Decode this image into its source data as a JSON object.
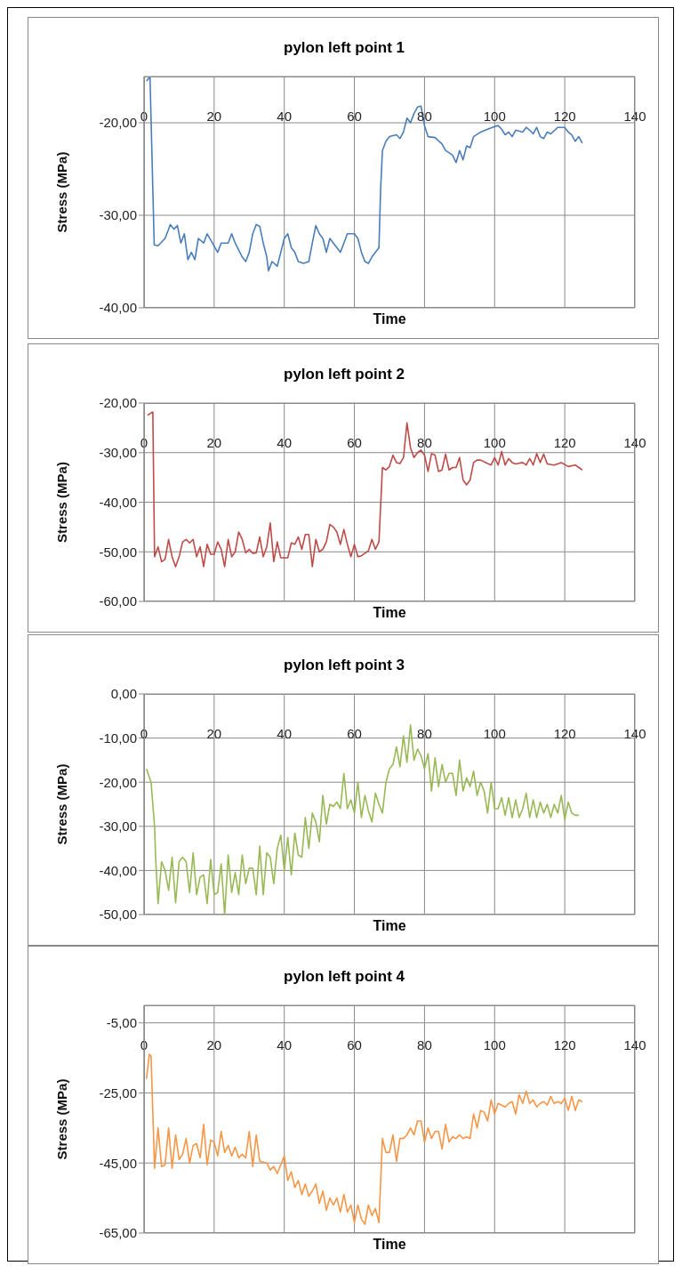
{
  "chart_data": [
    {
      "type": "line",
      "title": "pylon left point 1",
      "xlabel": "Time",
      "ylabel": "Stress (MPa)",
      "color": "#4a7ebb",
      "grid": true,
      "xlim": [
        0,
        140
      ],
      "xticks": [
        0,
        20,
        40,
        60,
        80,
        100,
        120,
        140
      ],
      "ylim": [
        -40,
        -15
      ],
      "yticks": [
        {
          "value": -40,
          "label": "-40,00"
        },
        {
          "value": -30,
          "label": "-30,00"
        },
        {
          "value": -20,
          "label": "-20,00"
        }
      ],
      "x": [
        0.7,
        1.7,
        2.9,
        4,
        6,
        7.5,
        8.5,
        9.5,
        10.5,
        11.5,
        12.5,
        13.5,
        14.5,
        15.5,
        17,
        18,
        19.5,
        21,
        22,
        24,
        25,
        26,
        28,
        29,
        30,
        31,
        32,
        33,
        34,
        35,
        35.5,
        36.5,
        38,
        39,
        40,
        41,
        42,
        43,
        44,
        45.5,
        47,
        48,
        49,
        50,
        51,
        52,
        53,
        54,
        55,
        56,
        57,
        58,
        60,
        61,
        62,
        63,
        64,
        65,
        66,
        67,
        67.5,
        68,
        69,
        70,
        72,
        73,
        74,
        75,
        76,
        77,
        78,
        79,
        80,
        81,
        83,
        85,
        86,
        88,
        89,
        90,
        91,
        92,
        93,
        94,
        96,
        98,
        100,
        101,
        102,
        103,
        104,
        105,
        106,
        108,
        109,
        110,
        111,
        112,
        113,
        114,
        115,
        116,
        118,
        120,
        121,
        122,
        123,
        124,
        125
      ],
      "values": [
        -15.5,
        -15,
        -33.2,
        -33.3,
        -32.5,
        -31,
        -31.5,
        -31.1,
        -33,
        -32,
        -34.8,
        -34,
        -34.8,
        -32.5,
        -33,
        -32,
        -33,
        -34,
        -33,
        -33,
        -32,
        -33,
        -34.5,
        -35,
        -34,
        -32,
        -31,
        -31.2,
        -33,
        -34.5,
        -36,
        -35,
        -35.5,
        -34,
        -32.5,
        -32,
        -33.5,
        -34,
        -35,
        -35.2,
        -35,
        -33,
        -31.1,
        -32,
        -32.5,
        -34,
        -32.5,
        -33,
        -33.5,
        -34,
        -33,
        -32,
        -32,
        -32.5,
        -34,
        -35,
        -35.2,
        -34.5,
        -34,
        -33.5,
        -27,
        -23,
        -22,
        -21.5,
        -21.3,
        -21.7,
        -21,
        -19.5,
        -20,
        -19,
        -18.3,
        -18.2,
        -20.3,
        -21.5,
        -21.6,
        -22.3,
        -23,
        -23.5,
        -24.3,
        -23,
        -24,
        -22.5,
        -22.7,
        -21.5,
        -21,
        -20.7,
        -20.4,
        -20.3,
        -20.7,
        -21.3,
        -21,
        -21.5,
        -20.8,
        -21,
        -20.5,
        -20.8,
        -21.2,
        -20.5,
        -21.5,
        -21.7,
        -21,
        -21.2,
        -20.5,
        -20.5,
        -21,
        -21.3,
        -22,
        -21.5,
        -22.2
      ]
    },
    {
      "type": "line",
      "title": "pylon left point 2",
      "xlabel": "Time",
      "ylabel": "Stress (MPa)",
      "color": "#be4b48",
      "grid": true,
      "xlim": [
        0,
        140
      ],
      "xticks": [
        0,
        20,
        40,
        60,
        80,
        100,
        120,
        140
      ],
      "ylim": [
        -60,
        -20
      ],
      "yticks": [
        {
          "value": -60,
          "label": "-60,00"
        },
        {
          "value": -50,
          "label": "-50,00"
        },
        {
          "value": -40,
          "label": "-40,00"
        },
        {
          "value": -30,
          "label": "-30,00"
        },
        {
          "value": -20,
          "label": "-20,00"
        }
      ],
      "x": [
        1,
        2,
        2.5,
        3,
        4,
        5,
        6,
        7,
        8,
        9,
        10,
        11,
        12,
        13,
        14,
        15,
        16,
        17,
        18,
        19,
        20,
        21,
        22,
        23,
        24,
        25,
        26,
        27,
        28,
        29,
        30,
        31,
        32,
        33,
        34,
        35,
        36,
        37,
        38,
        39,
        41,
        42,
        43,
        44,
        45,
        46,
        47,
        48,
        49,
        50,
        51,
        52,
        53,
        54,
        55,
        56,
        57,
        58,
        59,
        60,
        61,
        62,
        64,
        65,
        66,
        67,
        68,
        69,
        70,
        71,
        72,
        73,
        74,
        75,
        76,
        77,
        78,
        79,
        80,
        81,
        82,
        83,
        84,
        85,
        86,
        87,
        88,
        89,
        90,
        91,
        92,
        93,
        94,
        95,
        96,
        98,
        99,
        100,
        101,
        102,
        103,
        104,
        105,
        106,
        108,
        109,
        110,
        111,
        112,
        113,
        114,
        115,
        117,
        119,
        121,
        123,
        125
      ],
      "values": [
        -22.5,
        -22,
        -21.8,
        -51,
        -49,
        -52,
        -51.5,
        -47.5,
        -51,
        -53,
        -51,
        -48,
        -47.5,
        -48.2,
        -47.5,
        -51,
        -49,
        -53,
        -48.5,
        -50.5,
        -50.5,
        -48,
        -49.5,
        -53,
        -47.5,
        -51,
        -50,
        -46,
        -47.5,
        -50.2,
        -49.5,
        -50.3,
        -50.2,
        -47,
        -51,
        -49,
        -44.2,
        -52,
        -48,
        -51.2,
        -51.2,
        -48.2,
        -48.5,
        -47,
        -49.5,
        -46.5,
        -46.5,
        -53,
        -47.5,
        -50,
        -49.5,
        -48,
        -44.5,
        -45,
        -46,
        -48.5,
        -45.5,
        -48.5,
        -51,
        -48.5,
        -51,
        -50.8,
        -49.8,
        -47.5,
        -49.5,
        -48,
        -33,
        -33.5,
        -32.8,
        -30.5,
        -32,
        -32.2,
        -31,
        -24,
        -29,
        -31,
        -30,
        -29.5,
        -30.5,
        -33.8,
        -30.2,
        -30.5,
        -33.8,
        -33.5,
        -30.3,
        -33.5,
        -33,
        -33,
        -31,
        -35.5,
        -36.5,
        -35.5,
        -32,
        -31.5,
        -31.5,
        -32.2,
        -32.5,
        -31,
        -32.5,
        -29.8,
        -32.5,
        -31.2,
        -32,
        -32.3,
        -32,
        -32.5,
        -31.2,
        -32.5,
        -30.2,
        -32,
        -30.3,
        -32.3,
        -32.5,
        -32,
        -32.8,
        -32.5,
        -33.5
      ]
    },
    {
      "type": "line",
      "title": "pylon left point 3",
      "xlabel": "Time",
      "ylabel": "Stress (MPa)",
      "color": "#98b954",
      "grid": true,
      "xlim": [
        0,
        140
      ],
      "xticks": [
        0,
        20,
        40,
        60,
        80,
        100,
        120,
        140
      ],
      "ylim": [
        -50,
        0
      ],
      "yticks": [
        {
          "value": -50,
          "label": "-50,00"
        },
        {
          "value": -40,
          "label": "-40,00"
        },
        {
          "value": -30,
          "label": "-30,00"
        },
        {
          "value": -20,
          "label": "-20,00"
        },
        {
          "value": -10,
          "label": "-10,00"
        },
        {
          "value": 0,
          "label": "0,00"
        }
      ],
      "x": [
        0.7,
        2,
        3,
        3.3,
        4,
        5,
        6,
        7,
        8,
        9,
        10,
        11,
        12,
        13,
        14,
        15,
        16,
        17,
        18,
        19,
        20,
        21,
        22,
        23,
        24,
        25,
        26,
        27,
        28,
        29,
        30,
        31,
        32,
        33,
        34,
        35,
        36,
        37,
        38,
        39,
        40,
        41,
        42,
        43,
        44,
        45,
        46,
        47,
        48,
        49,
        50,
        51,
        52,
        53,
        54,
        55,
        56,
        57,
        58,
        59,
        60,
        61,
        62,
        63,
        64,
        65,
        66,
        67,
        68,
        69,
        70,
        71,
        72,
        73,
        74,
        75,
        76,
        77,
        78,
        79,
        80,
        81,
        82,
        83,
        84,
        85,
        86,
        87,
        88,
        89,
        90,
        91,
        92,
        93,
        94,
        95,
        96,
        97,
        98,
        99,
        100,
        101,
        102,
        103,
        104,
        105,
        106,
        107,
        108,
        109,
        110,
        111,
        112,
        113,
        114,
        115,
        116,
        117,
        118,
        119,
        120,
        121,
        122,
        123,
        124
      ],
      "values": [
        -17,
        -20,
        -30,
        -37,
        -47.5,
        -38,
        -40,
        -44.5,
        -37,
        -47.3,
        -38,
        -37,
        -38,
        -45,
        -36,
        -45.5,
        -41.5,
        -41,
        -47.5,
        -37.5,
        -45.5,
        -45,
        -38.5,
        -50,
        -36.5,
        -45,
        -40.5,
        -45.5,
        -36.5,
        -43,
        -39.5,
        -39.5,
        -45.5,
        -34.5,
        -45.5,
        -36,
        -37,
        -43,
        -35,
        -32,
        -40,
        -32.5,
        -41,
        -31.5,
        -36.5,
        -37,
        -28,
        -35,
        -27,
        -29,
        -33.5,
        -23,
        -29.5,
        -25,
        -25.5,
        -24.5,
        -26,
        -18,
        -26,
        -24,
        -27,
        -20,
        -28,
        -23,
        -26.5,
        -29,
        -22.5,
        -25,
        -27,
        -20,
        -17,
        -16,
        -12,
        -16.5,
        -9.5,
        -15.5,
        -7,
        -15,
        -12.5,
        -14,
        -17,
        -13.5,
        -22,
        -14.5,
        -21,
        -16,
        -20,
        -18,
        -18,
        -23,
        -15,
        -22,
        -19,
        -21,
        -17.5,
        -23,
        -20,
        -22,
        -27,
        -20,
        -26,
        -26,
        -23.5,
        -27.5,
        -23.5,
        -28,
        -24,
        -28,
        -26,
        -22.5,
        -28,
        -24,
        -28,
        -24.5,
        -27,
        -25,
        -28,
        -25,
        -27,
        -23,
        -28.5,
        -24.5,
        -27,
        -27.5,
        -27.5
      ]
    },
    {
      "type": "line",
      "title": "pylon left point 4",
      "xlabel": "Time",
      "ylabel": "Stress (MPa)",
      "color": "#f79646",
      "grid": true,
      "xlim": [
        0,
        140
      ],
      "xticks": [
        0,
        20,
        40,
        60,
        80,
        100,
        120,
        140
      ],
      "ylim": [
        -65,
        0
      ],
      "yticks": [
        {
          "value": -65,
          "label": "-65,00"
        },
        {
          "value": -45,
          "label": "-45,00"
        },
        {
          "value": -25,
          "label": "-25,00"
        },
        {
          "value": -5,
          "label": "-5,00"
        }
      ],
      "x": [
        0.7,
        1.5,
        2,
        3,
        4,
        5,
        6,
        7,
        8,
        9,
        10,
        11,
        12,
        13,
        14,
        15,
        16,
        17,
        18,
        19,
        20,
        21,
        22,
        23,
        24,
        25,
        26,
        27,
        28,
        29,
        30,
        31,
        32,
        33,
        35,
        36,
        37,
        38,
        39,
        40,
        41,
        42,
        43,
        44,
        45,
        46,
        47,
        48,
        49,
        50,
        51,
        52,
        53,
        54,
        55,
        56,
        57,
        58,
        59,
        60,
        61,
        62,
        63,
        64,
        65,
        66,
        67,
        68,
        69,
        70,
        71,
        72,
        73,
        74,
        75,
        76,
        77,
        78,
        79,
        80,
        81,
        82,
        83,
        84,
        85,
        86,
        87,
        88,
        89,
        90,
        91,
        92,
        93,
        94,
        95,
        96,
        97,
        98,
        99,
        100,
        101,
        102,
        103,
        104,
        105,
        106,
        107,
        108,
        109,
        110,
        111,
        112,
        113,
        114,
        115,
        116,
        117,
        118,
        119,
        120,
        121,
        122,
        123,
        124,
        125
      ],
      "values": [
        -21,
        -14,
        -14.5,
        -46.5,
        -35,
        -46,
        -45.5,
        -35,
        -46.5,
        -37,
        -44,
        -42.5,
        -38,
        -45,
        -40,
        -39.5,
        -43.5,
        -34,
        -45.5,
        -38.5,
        -39,
        -43,
        -36,
        -42,
        -40,
        -43,
        -40.5,
        -43.5,
        -42.5,
        -43.5,
        -36,
        -46,
        -37,
        -44.5,
        -45,
        -47,
        -46,
        -48,
        -45.5,
        -43,
        -50,
        -47.5,
        -52,
        -50,
        -54,
        -51,
        -54.5,
        -53,
        -51,
        -56.5,
        -53,
        -58.5,
        -55,
        -57,
        -55,
        -59,
        -54,
        -59,
        -57,
        -62,
        -57,
        -61,
        -62.5,
        -57,
        -60,
        -58,
        -62,
        -38,
        -42,
        -42,
        -37,
        -44.5,
        -38,
        -38,
        -37,
        -35,
        -37,
        -33,
        -33,
        -39,
        -35,
        -38,
        -36,
        -36,
        -41,
        -34,
        -39,
        -37.5,
        -38,
        -37,
        -38,
        -37.5,
        -38,
        -31,
        -35,
        -30,
        -30.5,
        -33,
        -27,
        -31,
        -28,
        -28.5,
        -29,
        -28,
        -27.5,
        -31,
        -25.5,
        -28,
        -24.5,
        -28,
        -27,
        -29,
        -28,
        -27.5,
        -28.5,
        -26,
        -28,
        -27.5,
        -28,
        -26.5,
        -30,
        -26,
        -30,
        -27,
        -27.5
      ]
    }
  ]
}
